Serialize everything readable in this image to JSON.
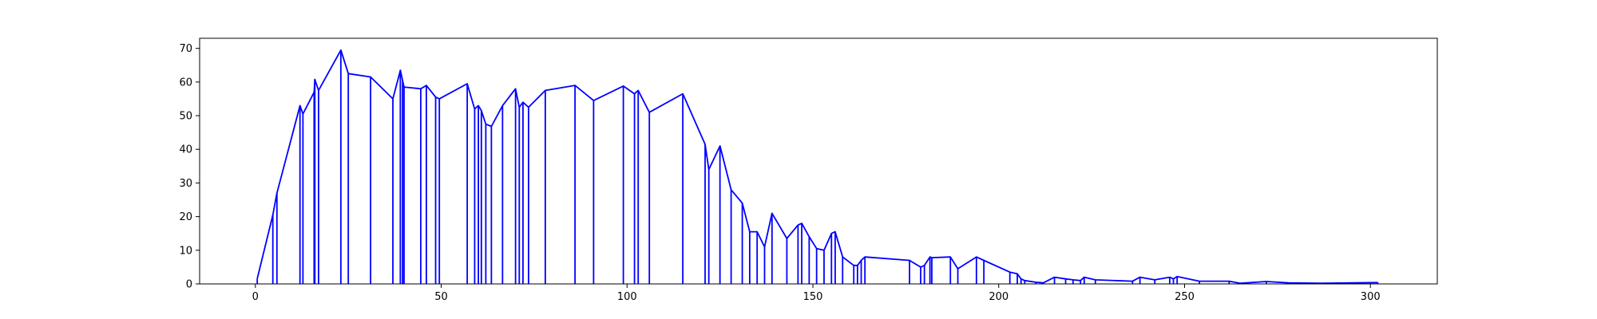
{
  "chart_data": {
    "type": "line",
    "title": "",
    "xlabel": "",
    "ylabel": "",
    "xlim": [
      -15,
      318
    ],
    "ylim": [
      0,
      73
    ],
    "grid": false,
    "legend": "none",
    "colors": {
      "line": "#0000ff",
      "axes": "#000000",
      "background": "#ffffff"
    },
    "xticks": [
      0,
      50,
      100,
      150,
      200,
      250,
      300
    ],
    "yticks": [
      0,
      10,
      20,
      30,
      40,
      50,
      60,
      70
    ],
    "xtick_labels": [
      "0",
      "50",
      "100",
      "150",
      "200",
      "250",
      "300"
    ],
    "ytick_labels": [
      "0",
      "10",
      "20",
      "30",
      "40",
      "50",
      "60",
      "70"
    ],
    "series": [
      {
        "color": "#0000ff",
        "x": [
          0.5,
          4.7,
          5.8,
          12.0,
          12.8,
          15.8,
          16.0,
          17.0,
          23.0,
          25.0,
          31.0,
          37.0,
          39.0,
          39.6,
          40.0,
          44.5,
          46.0,
          48.5,
          49.5,
          57.0,
          59.0,
          60.0,
          60.8,
          62.0,
          63.5,
          66.5,
          70.0,
          71.0,
          72.0,
          73.5,
          78.0,
          86.0,
          91.0,
          99.0,
          102.0,
          103.0,
          106.0,
          115.0,
          121.0,
          122.0,
          125.0,
          128.0,
          131.0,
          133.0,
          135.0,
          137.0,
          139.0,
          143.0,
          146.0,
          147.0,
          149.0,
          151.0,
          153.0,
          155.0,
          156.0,
          158.0,
          161.0,
          162.0,
          163.0,
          164.0,
          176.0,
          179.0,
          180.0,
          181.5,
          182.0,
          187.0,
          189.0,
          194.0,
          196.0,
          203.0,
          205.0,
          206.0,
          207.0,
          210.0,
          212.0,
          215.0,
          218.0,
          220.0,
          222.0,
          223.0,
          226.0,
          236.0,
          238.0,
          242.0,
          246.0,
          247.0,
          248.0,
          254.0,
          262.0,
          265.0,
          272.0,
          278.0,
          287.0,
          302.0
        ],
        "y": [
          1.5,
          20.5,
          27.0,
          53.0,
          50.5,
          57.0,
          60.8,
          57.5,
          69.5,
          62.5,
          61.5,
          55.0,
          63.5,
          60.5,
          58.5,
          58.0,
          59.0,
          55.5,
          55.0,
          59.5,
          52.0,
          53.0,
          51.5,
          47.5,
          46.8,
          53.0,
          58.0,
          52.5,
          54.0,
          52.5,
          57.5,
          59.0,
          54.5,
          58.8,
          56.5,
          57.5,
          51.0,
          56.5,
          41.5,
          34.0,
          41.0,
          28.0,
          24.0,
          15.5,
          15.5,
          11.0,
          21.0,
          13.5,
          17.5,
          18.0,
          14.0,
          10.5,
          10.0,
          15.0,
          15.5,
          8.0,
          5.5,
          5.5,
          7.0,
          8.0,
          7.0,
          5.0,
          5.5,
          8.0,
          7.8,
          8.0,
          4.5,
          8.0,
          7.0,
          3.5,
          3.0,
          1.5,
          1.0,
          0.5,
          0.3,
          2.0,
          1.5,
          1.2,
          1.0,
          2.0,
          1.2,
          0.8,
          2.0,
          1.2,
          2.0,
          1.5,
          2.2,
          0.8,
          0.8,
          0.2,
          0.7,
          0.3,
          0.2,
          0.4
        ]
      }
    ]
  }
}
